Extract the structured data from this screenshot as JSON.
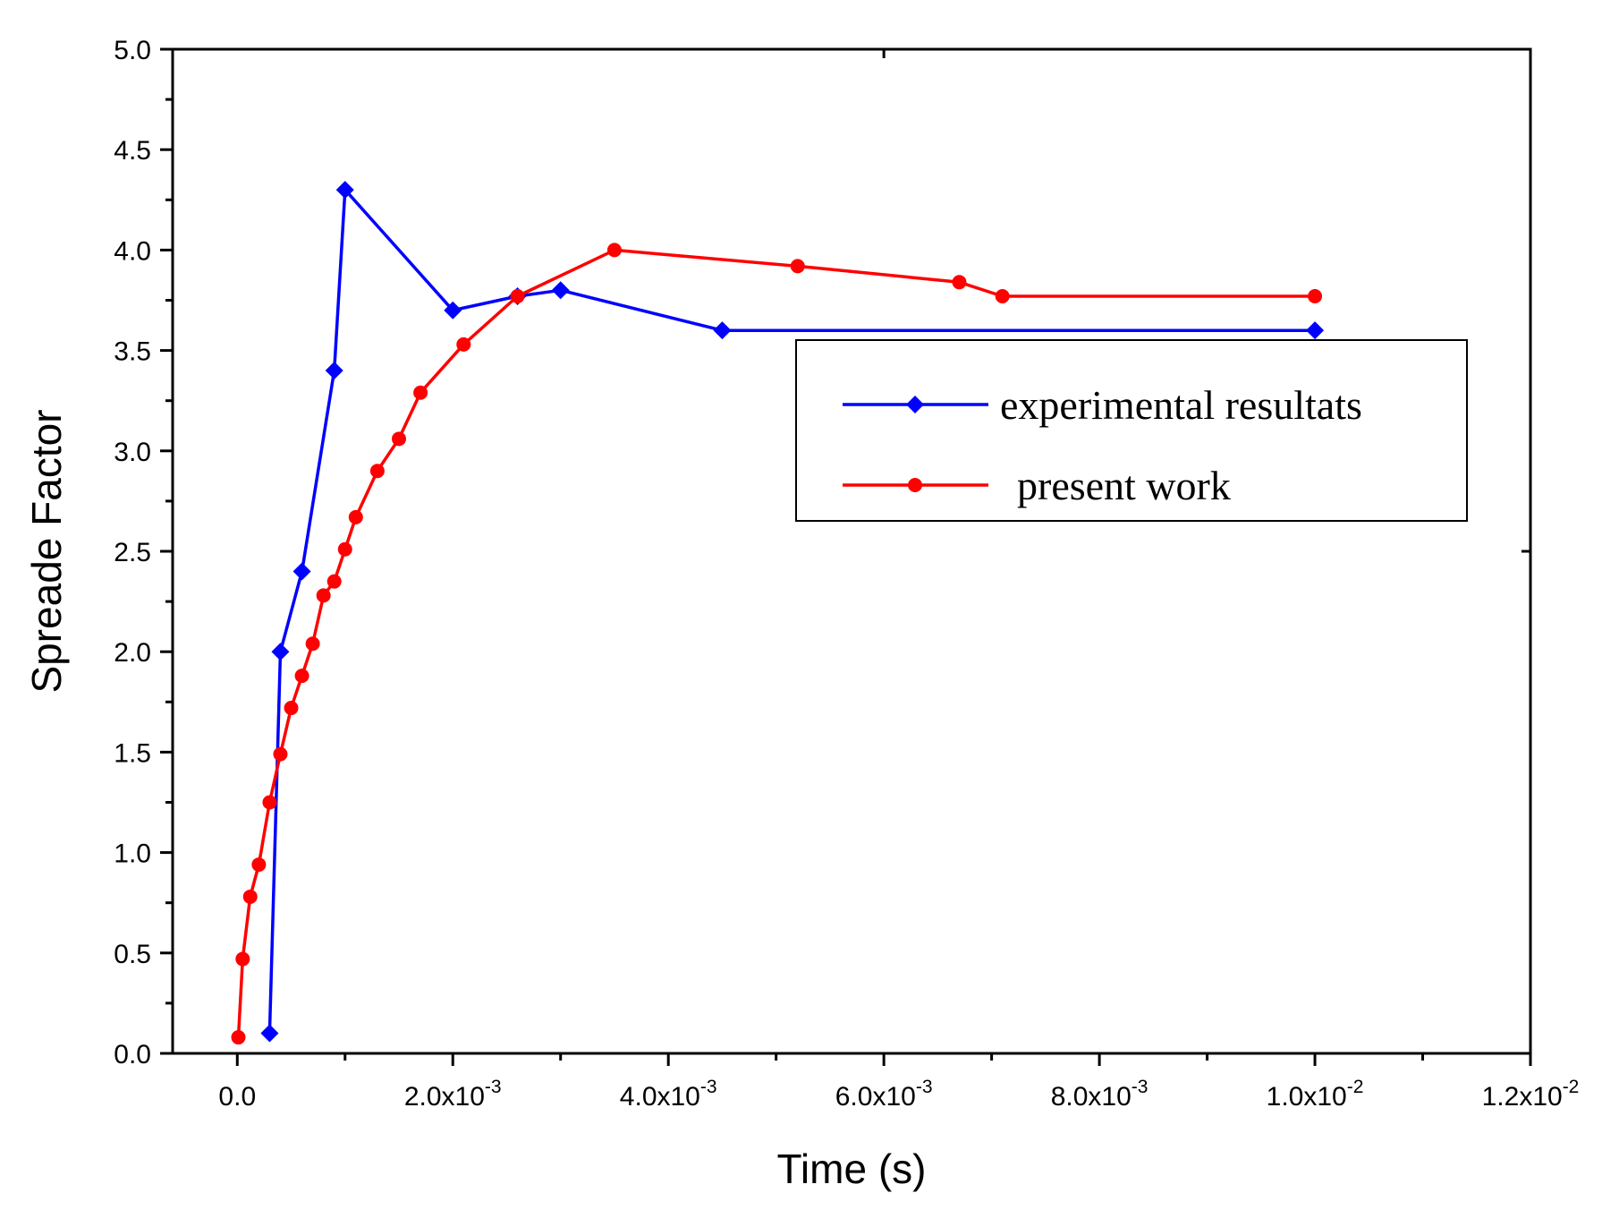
{
  "chart_data": {
    "type": "line",
    "title": "",
    "xlabel": "Time (s)",
    "ylabel": "Spreade Factor",
    "xlim": [
      -0.0006,
      0.012
    ],
    "ylim": [
      0,
      5.0
    ],
    "grid": false,
    "legend_position": "right",
    "x_ticks": [
      {
        "value": 0,
        "mantissa": "0.0",
        "exp": ""
      },
      {
        "value": 0.002,
        "mantissa": "2.0x10",
        "exp": "-3"
      },
      {
        "value": 0.004,
        "mantissa": "4.0x10",
        "exp": "-3"
      },
      {
        "value": 0.006,
        "mantissa": "6.0x10",
        "exp": "-3"
      },
      {
        "value": 0.008,
        "mantissa": "8.0x10",
        "exp": "-3"
      },
      {
        "value": 0.01,
        "mantissa": "1.0x10",
        "exp": "-2"
      },
      {
        "value": 0.012,
        "mantissa": "1.2x10",
        "exp": "-2"
      }
    ],
    "y_ticks": [
      "0.0",
      "0.5",
      "1.0",
      "1.5",
      "2.0",
      "2.5",
      "3.0",
      "3.5",
      "4.0",
      "4.5",
      "5.0"
    ],
    "series": [
      {
        "name": "experimental resultats",
        "color": "#0000ff",
        "marker": "diamond",
        "x": [
          0.0003,
          0.0004,
          0.0006,
          0.0009,
          0.001,
          0.002,
          0.0026,
          0.003,
          0.0045,
          0.01
        ],
        "y": [
          0.1,
          2.0,
          2.4,
          3.4,
          4.3,
          3.7,
          3.77,
          3.8,
          3.6,
          3.6
        ]
      },
      {
        "name": "present work",
        "color": "#ff0000",
        "marker": "circle",
        "x": [
          1e-05,
          5e-05,
          0.00012,
          0.0002,
          0.0003,
          0.0004,
          0.0005,
          0.0006,
          0.0007,
          0.0008,
          0.0009,
          0.001,
          0.0011,
          0.0013,
          0.0015,
          0.0017,
          0.0021,
          0.0026,
          0.0035,
          0.0052,
          0.0067,
          0.0071,
          0.01
        ],
        "y": [
          0.08,
          0.47,
          0.78,
          0.94,
          1.25,
          1.49,
          1.72,
          1.88,
          2.04,
          2.28,
          2.35,
          2.51,
          2.67,
          2.9,
          3.06,
          3.29,
          3.53,
          3.77,
          4.0,
          3.92,
          3.84,
          3.77,
          3.77
        ]
      }
    ]
  }
}
